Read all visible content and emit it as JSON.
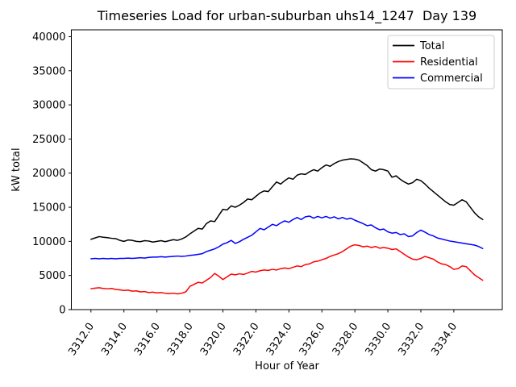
{
  "chart_data": {
    "type": "line",
    "title": "Timeseries Load for urban-suburban uhs14_1247  Day 139",
    "xlabel": "Hour of Year",
    "ylabel": "kW total",
    "xlim": [
      3310.8125,
      3336.9375
    ],
    "ylim": [
      0,
      41000
    ],
    "grid": false,
    "legend": {
      "position": "upper right",
      "entries": [
        "Total",
        "Residential",
        "Commercial"
      ]
    },
    "xticks": [
      3312,
      3314,
      3316,
      3318,
      3320,
      3322,
      3324,
      3326,
      3328,
      3330,
      3332,
      3334
    ],
    "xtick_labels": [
      "3312.0",
      "3314.0",
      "3316.0",
      "3318.0",
      "3320.0",
      "3322.0",
      "3324.0",
      "3326.0",
      "3328.0",
      "3330.0",
      "3332.0",
      "3334.0"
    ],
    "yticks": [
      0,
      5000,
      10000,
      15000,
      20000,
      25000,
      30000,
      35000,
      40000
    ],
    "ytick_labels": [
      "0",
      "5000",
      "10000",
      "15000",
      "20000",
      "25000",
      "30000",
      "35000",
      "40000"
    ],
    "x": [
      3312.0,
      3312.25,
      3312.5,
      3312.75,
      3313.0,
      3313.25,
      3313.5,
      3313.75,
      3314.0,
      3314.25,
      3314.5,
      3314.75,
      3315.0,
      3315.25,
      3315.5,
      3315.75,
      3316.0,
      3316.25,
      3316.5,
      3316.75,
      3317.0,
      3317.25,
      3317.5,
      3317.75,
      3318.0,
      3318.25,
      3318.5,
      3318.75,
      3319.0,
      3319.25,
      3319.5,
      3319.75,
      3320.0,
      3320.25,
      3320.5,
      3320.75,
      3321.0,
      3321.25,
      3321.5,
      3321.75,
      3322.0,
      3322.25,
      3322.5,
      3322.75,
      3323.0,
      3323.25,
      3323.5,
      3323.75,
      3324.0,
      3324.25,
      3324.5,
      3324.75,
      3325.0,
      3325.25,
      3325.5,
      3325.75,
      3326.0,
      3326.25,
      3326.5,
      3326.75,
      3327.0,
      3327.25,
      3327.5,
      3327.75,
      3328.0,
      3328.25,
      3328.5,
      3328.75,
      3329.0,
      3329.25,
      3329.5,
      3329.75,
      3330.0,
      3330.25,
      3330.5,
      3330.75,
      3331.0,
      3331.25,
      3331.5,
      3331.75,
      3332.0,
      3332.25,
      3332.5,
      3332.75,
      3333.0,
      3333.25,
      3333.5,
      3333.75,
      3334.0,
      3334.25,
      3334.5,
      3334.75,
      3335.0,
      3335.25,
      3335.5,
      3335.75
    ],
    "series": [
      {
        "name": "Total",
        "color": "#000000",
        "values": [
          10300,
          10500,
          10700,
          10600,
          10550,
          10450,
          10400,
          10150,
          10000,
          10200,
          10150,
          10000,
          9950,
          10100,
          10050,
          9900,
          10000,
          10100,
          9950,
          10100,
          10250,
          10150,
          10350,
          10650,
          11100,
          11500,
          11900,
          11800,
          12600,
          13000,
          12900,
          13800,
          14700,
          14600,
          15200,
          15000,
          15300,
          15700,
          16200,
          16100,
          16600,
          17100,
          17400,
          17300,
          18000,
          18700,
          18400,
          18900,
          19300,
          19100,
          19700,
          19900,
          19800,
          20200,
          20500,
          20300,
          20800,
          21200,
          21000,
          21400,
          21700,
          21900,
          22000,
          22100,
          22050,
          21900,
          21500,
          21100,
          20500,
          20300,
          20600,
          20500,
          20300,
          19400,
          19600,
          19100,
          18700,
          18400,
          18600,
          19100,
          18900,
          18400,
          17800,
          17300,
          16800,
          16300,
          15800,
          15400,
          15300,
          15700,
          16100,
          15800,
          15000,
          14200,
          13600,
          13200
        ]
      },
      {
        "name": "Residential",
        "color": "#ff0000",
        "values": [
          3050,
          3150,
          3200,
          3100,
          3050,
          3100,
          2950,
          2900,
          2800,
          2850,
          2700,
          2750,
          2600,
          2650,
          2500,
          2550,
          2450,
          2500,
          2400,
          2350,
          2400,
          2300,
          2400,
          2600,
          3400,
          3700,
          4000,
          3900,
          4300,
          4700,
          5300,
          4900,
          4400,
          4800,
          5200,
          5100,
          5250,
          5150,
          5350,
          5600,
          5500,
          5700,
          5800,
          5750,
          5900,
          5800,
          6000,
          6100,
          6000,
          6200,
          6400,
          6300,
          6600,
          6700,
          7000,
          7100,
          7300,
          7500,
          7800,
          8000,
          8200,
          8500,
          8900,
          9300,
          9500,
          9400,
          9200,
          9300,
          9100,
          9250,
          9000,
          9100,
          9000,
          8800,
          8900,
          8500,
          8100,
          7700,
          7400,
          7300,
          7500,
          7800,
          7600,
          7400,
          7000,
          6700,
          6600,
          6300,
          5900,
          6000,
          6400,
          6300,
          5700,
          5100,
          4700,
          4300
        ]
      },
      {
        "name": "Commercial",
        "color": "#0000ff",
        "values": [
          7450,
          7500,
          7450,
          7500,
          7450,
          7500,
          7450,
          7500,
          7500,
          7550,
          7500,
          7550,
          7600,
          7550,
          7650,
          7700,
          7700,
          7750,
          7700,
          7750,
          7800,
          7850,
          7800,
          7850,
          7950,
          8000,
          8100,
          8200,
          8500,
          8700,
          8900,
          9200,
          9600,
          9800,
          10150,
          9700,
          9950,
          10300,
          10600,
          10900,
          11400,
          11900,
          11700,
          12100,
          12500,
          12300,
          12700,
          13000,
          12800,
          13200,
          13500,
          13200,
          13600,
          13700,
          13400,
          13650,
          13450,
          13650,
          13400,
          13600,
          13300,
          13500,
          13250,
          13400,
          13100,
          12850,
          12600,
          12300,
          12400,
          12000,
          11700,
          11800,
          11400,
          11200,
          11300,
          11000,
          11100,
          10700,
          10800,
          11300,
          11650,
          11350,
          11000,
          10800,
          10500,
          10350,
          10200,
          10050,
          9950,
          9850,
          9750,
          9650,
          9550,
          9450,
          9250,
          8950
        ]
      }
    ]
  }
}
